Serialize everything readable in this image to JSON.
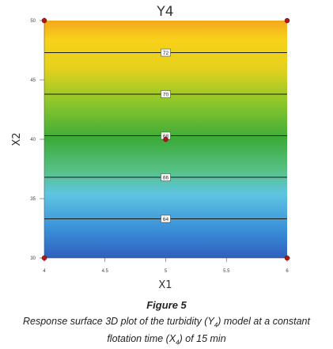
{
  "chart_data": {
    "type": "contour",
    "title": "Y4",
    "xlabel": "X1",
    "ylabel": "X2",
    "xlim": [
      4,
      6
    ],
    "ylim": [
      30,
      50
    ],
    "x_ticks": [
      "4",
      "4.5",
      "5",
      "5.5",
      "6"
    ],
    "y_ticks": [
      "30",
      "35",
      "40",
      "45",
      "50"
    ],
    "contours": [
      {
        "level": "64",
        "y": 33.3
      },
      {
        "level": "66",
        "y": 36.8
      },
      {
        "level": "68",
        "y": 40.3
      },
      {
        "level": "70",
        "y": 43.8
      },
      {
        "level": "72",
        "y": 47.3
      }
    ],
    "design_points": [
      {
        "x": 4,
        "y": 30
      },
      {
        "x": 6,
        "y": 30
      },
      {
        "x": 4,
        "y": 50
      },
      {
        "x": 6,
        "y": 50
      },
      {
        "x": 5,
        "y": 40
      }
    ],
    "colors": {
      "low": "#2f62c0",
      "mid_low": "#5cc0e0",
      "mid": "#3fae3c",
      "mid_high": "#a6cf28",
      "high": "#f6d319",
      "top": "#f2a51b",
      "point": "#b01818",
      "contour": "#1a1a1a"
    }
  },
  "caption": {
    "figure": "Figure 5",
    "line1_pre": "Response surface 3D plot of the turbidity (Y",
    "line1_sub": "4",
    "line1_post": ") model at a constant",
    "line2_pre": "flotation time (X",
    "line2_sub": "4",
    "line2_post": ") of 15 min"
  }
}
